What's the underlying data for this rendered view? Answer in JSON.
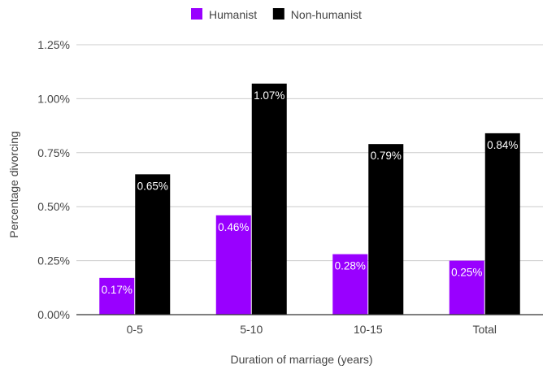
{
  "chart_data": {
    "type": "bar",
    "title": "",
    "xlabel": "Duration of marriage (years)",
    "ylabel": "Percentage divorcing",
    "categories": [
      "0-5",
      "5-10",
      "10-15",
      "Total"
    ],
    "series": [
      {
        "name": "Humanist",
        "color": "#9900ff",
        "values": [
          0.17,
          0.46,
          0.28,
          0.25
        ],
        "labels": [
          "0.17%",
          "0.46%",
          "0.28%",
          "0.25%"
        ]
      },
      {
        "name": "Non-humanist",
        "color": "#000000",
        "values": [
          0.65,
          1.07,
          0.79,
          0.84
        ],
        "labels": [
          "0.65%",
          "1.07%",
          "0.79%",
          "0.84%"
        ]
      }
    ],
    "ylim": [
      0,
      1.25
    ],
    "yticks": [
      0,
      0.25,
      0.5,
      0.75,
      1.0,
      1.25
    ],
    "ytick_labels": [
      "0.00%",
      "0.25%",
      "0.50%",
      "0.75%",
      "1.00%",
      "1.25%"
    ],
    "grid": true,
    "legend_position": "top-center",
    "colors": {
      "grid": "#cccccc",
      "axis": "#333333",
      "text": "#444444",
      "label_text": "#ffffff"
    }
  }
}
